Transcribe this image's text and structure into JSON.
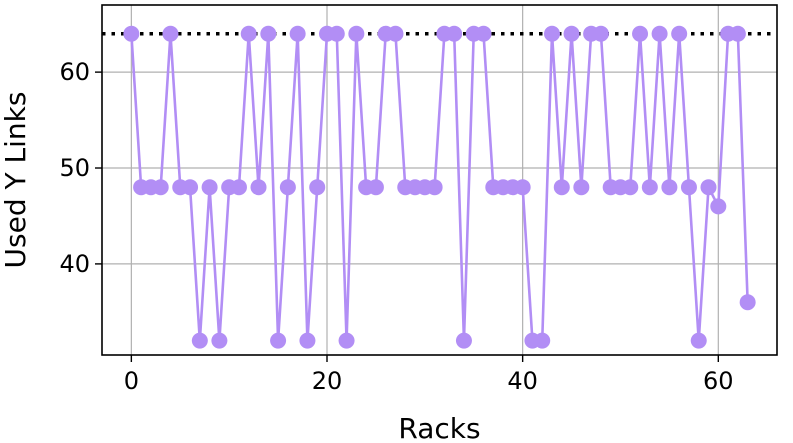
{
  "chart_data": {
    "type": "line",
    "xlabel": "Racks",
    "ylabel": "Used Y Links",
    "x_ticks": [
      "0",
      "20",
      "40",
      "60"
    ],
    "y_ticks": [
      "40",
      "50",
      "60"
    ],
    "xlim": [
      -3,
      66
    ],
    "ylim": [
      30.5,
      67
    ],
    "grid": true,
    "reference_line": {
      "value": 64,
      "style": "dotted",
      "color": "#000000"
    },
    "series": [
      {
        "color": "#b28ef5",
        "marker": "circle",
        "x": [
          0,
          1,
          2,
          3,
          4,
          5,
          6,
          7,
          8,
          9,
          10,
          11,
          12,
          13,
          14,
          15,
          16,
          17,
          18,
          19,
          20,
          21,
          22,
          23,
          24,
          25,
          26,
          27,
          28,
          29,
          30,
          31,
          32,
          33,
          34,
          35,
          36,
          37,
          38,
          39,
          40,
          41,
          42,
          43,
          44,
          45,
          46,
          47,
          48,
          49,
          50,
          51,
          52,
          53,
          54,
          55,
          56,
          57,
          58,
          59,
          60,
          61,
          62,
          63
        ],
        "values": [
          64,
          48,
          48,
          48,
          64,
          48,
          48,
          32,
          48,
          32,
          48,
          48,
          64,
          48,
          64,
          32,
          48,
          64,
          32,
          48,
          64,
          64,
          32,
          64,
          48,
          48,
          64,
          64,
          48,
          48,
          48,
          48,
          64,
          64,
          32,
          64,
          64,
          48,
          48,
          48,
          48,
          32,
          32,
          64,
          48,
          64,
          48,
          64,
          64,
          48,
          48,
          48,
          64,
          48,
          64,
          48,
          64,
          48,
          32,
          48,
          46,
          64,
          64,
          36
        ]
      }
    ]
  }
}
